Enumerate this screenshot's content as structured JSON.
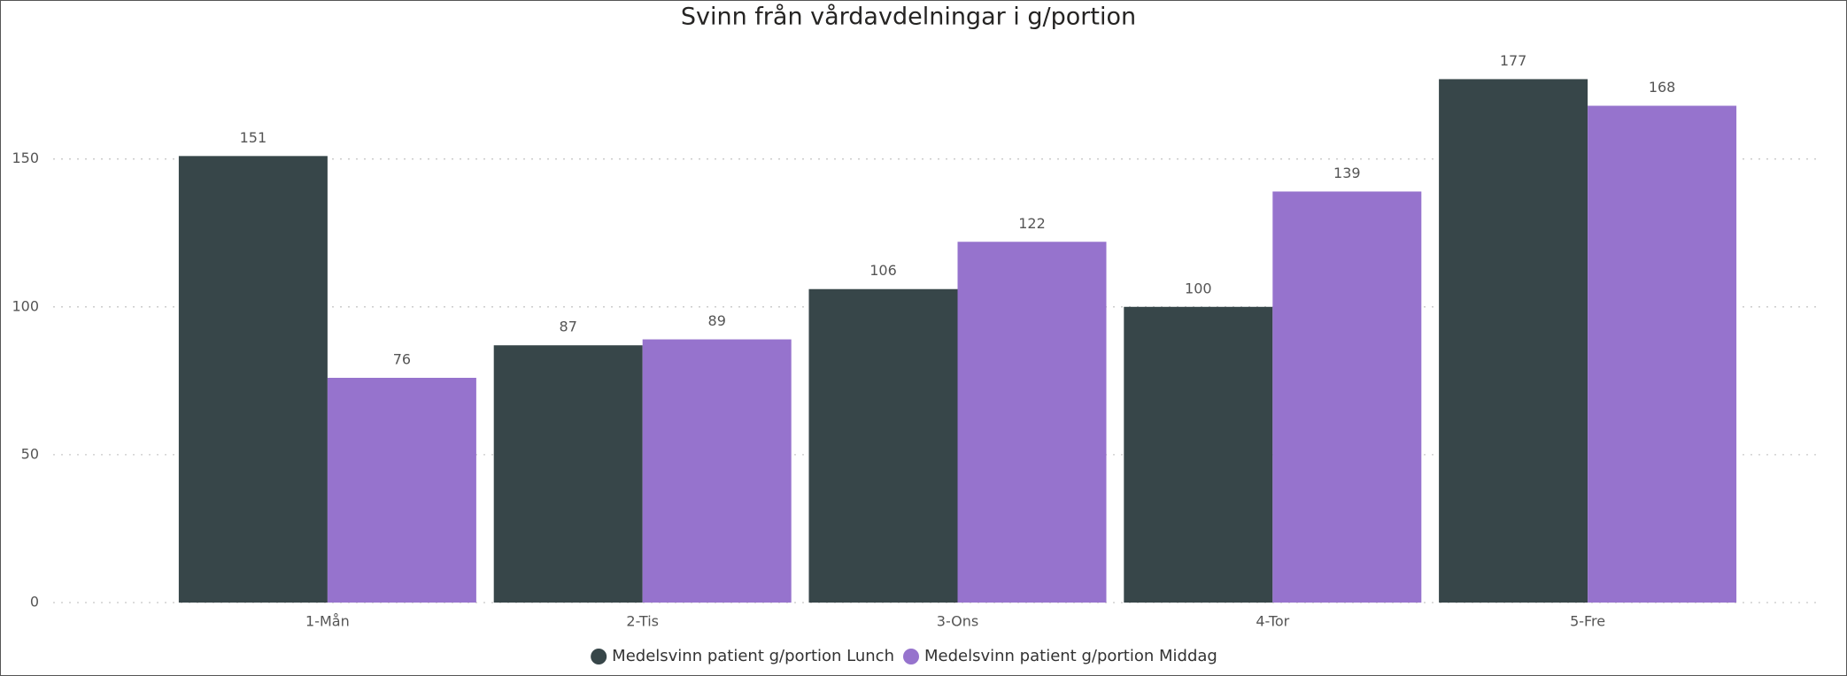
{
  "chart_data": {
    "type": "bar",
    "title": "Svinn från vårdavdelningar i g/portion",
    "categories": [
      "1-Mån",
      "2-Tis",
      "3-Ons",
      "4-Tor",
      "5-Fre"
    ],
    "series": [
      {
        "name": "Medelsvinn patient g/portion Lunch",
        "color": "#374649",
        "values": [
          151,
          87,
          106,
          100,
          177
        ]
      },
      {
        "name": "Medelsvinn patient g/portion Middag",
        "color": "#9673cd",
        "values": [
          76,
          89,
          122,
          139,
          168
        ]
      }
    ],
    "ylim": [
      0,
      190
    ],
    "yticks": [
      0,
      50,
      100,
      150
    ],
    "grid": true,
    "legend": "bottom"
  }
}
